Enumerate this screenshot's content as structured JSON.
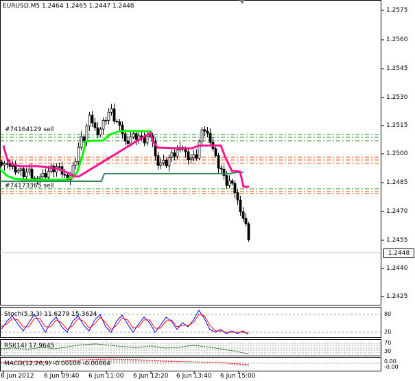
{
  "window": {
    "header": "EURUSD,M5  1.2464 1.2465 1.2447 1.2448"
  },
  "price_axis": {
    "labels": [
      "1.2575",
      "1.2560",
      "1.2545",
      "1.2530",
      "1.2515",
      "1.2500",
      "1.2485",
      "1.2470",
      "1.2455",
      "1.2440",
      "1.2425"
    ],
    "current_price": "1.2448"
  },
  "orders": {
    "order1": "#74164129 sell",
    "order2": "#74173365 sell"
  },
  "time_axis": {
    "labels": [
      "6 Jun 2012",
      "6 Jun 09:40",
      "6 Jun 11:00",
      "6 Jun 12:20",
      "6 Jun 13:40",
      "6 Jun 15:00"
    ]
  },
  "stoch": {
    "label": "Stoch(5,3,3) 11.6279 15.3624",
    "levels": [
      "80",
      "20"
    ]
  },
  "rsi": {
    "label": "RSI(14) 17.9645",
    "levels": [
      "70",
      "30"
    ]
  },
  "macd": {
    "label": "MACD(12,26,9) -0.00108 -0.00064",
    "levels": [
      "0.00",
      "-0.00"
    ]
  },
  "colors": {
    "bull": "#ffffff",
    "bear": "#000000",
    "upper_band": "#ff1493",
    "lower_band": "#00ff00",
    "order_line": "#228b22",
    "order_line_red": "#ff4500",
    "stoch_main": "#0000ff",
    "stoch_signal": "#ff0000",
    "rsi": "#006400",
    "macd": "#dcdcdc"
  }
}
